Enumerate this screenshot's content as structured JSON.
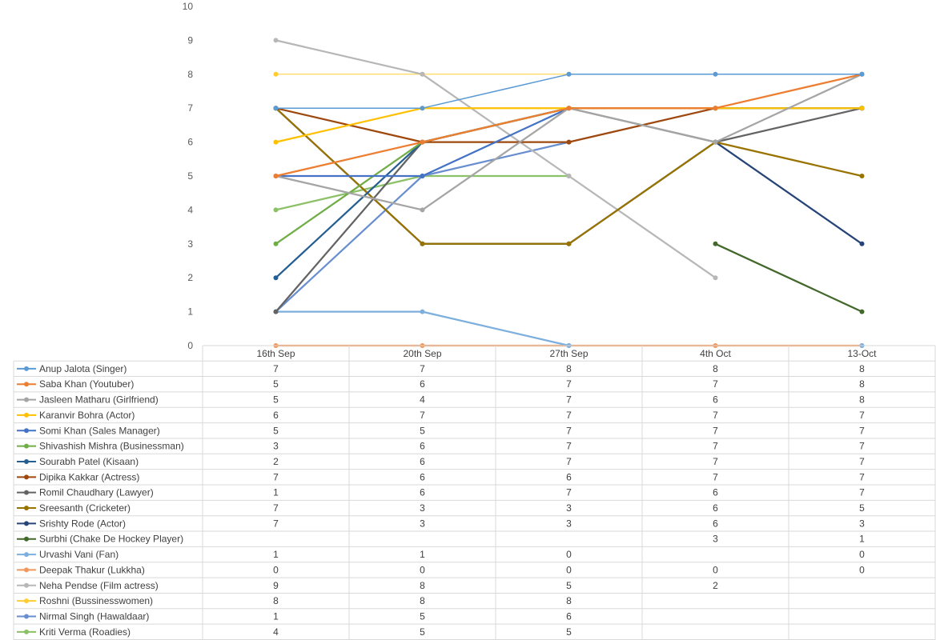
{
  "chart_data": {
    "type": "line",
    "title": "",
    "xlabel": "",
    "ylabel": "",
    "categories": [
      "16th Sep",
      "20th Sep",
      "27th Sep",
      "4th Oct",
      "13-Oct"
    ],
    "ylim": [
      0,
      10
    ],
    "yticks": [
      "0",
      "1",
      "2",
      "3",
      "4",
      "5",
      "6",
      "7",
      "8",
      "9",
      "10"
    ],
    "grid": false,
    "legend": "data-table-left",
    "series": [
      {
        "name": "Anup Jalota (Singer)",
        "color": "#5b9bd5",
        "values": [
          7,
          7,
          8,
          8,
          8
        ]
      },
      {
        "name": "Saba Khan (Youtuber)",
        "color": "#ed7d31",
        "values": [
          5,
          6,
          7,
          7,
          8
        ]
      },
      {
        "name": "Jasleen Matharu (Girlfriend)",
        "color": "#a5a5a5",
        "values": [
          5,
          4,
          7,
          6,
          8
        ]
      },
      {
        "name": "Karanvir Bohra (Actor)",
        "color": "#ffc000",
        "values": [
          6,
          7,
          7,
          7,
          7
        ]
      },
      {
        "name": "Somi Khan (Sales Manager)",
        "color": "#4472c4",
        "values": [
          5,
          5,
          7,
          7,
          7
        ]
      },
      {
        "name": "Shivashish Mishra (Businessman)",
        "color": "#70ad47",
        "values": [
          3,
          6,
          7,
          7,
          7
        ]
      },
      {
        "name": "Sourabh Patel (Kisaan)",
        "color": "#255e91",
        "values": [
          2,
          6,
          7,
          7,
          7
        ]
      },
      {
        "name": "Dipika Kakkar (Actress)",
        "color": "#9e480e",
        "values": [
          7,
          6,
          6,
          7,
          7
        ]
      },
      {
        "name": "Romil Chaudhary (Lawyer)",
        "color": "#636363",
        "values": [
          1,
          6,
          7,
          6,
          7
        ]
      },
      {
        "name": "Sreesanth (Cricketer)",
        "color": "#997300",
        "values": [
          7,
          3,
          3,
          6,
          5
        ]
      },
      {
        "name": "Srishty Rode (Actor)",
        "color": "#264478",
        "values": [
          7,
          3,
          3,
          6,
          3
        ]
      },
      {
        "name": "Surbhi (Chake De Hockey Player)",
        "color": "#43682b",
        "values": [
          null,
          null,
          null,
          3,
          1
        ]
      },
      {
        "name": "Urvashi Vani (Fan)",
        "color": "#7cafdd",
        "values": [
          1,
          1,
          0,
          null,
          0
        ]
      },
      {
        "name": "Deepak Thakur (Lukkha)",
        "color": "#f1975a",
        "values": [
          0,
          0,
          0,
          0,
          0
        ]
      },
      {
        "name": "Neha Pendse (Film actress)",
        "color": "#b7b7b7",
        "values": [
          9,
          8,
          5,
          2,
          null
        ]
      },
      {
        "name": "Roshni (Bussinesswomen)",
        "color": "#ffcd33",
        "values": [
          8,
          8,
          8,
          null,
          null
        ]
      },
      {
        "name": "Nirmal Singh (Hawaldaar)",
        "color": "#698ed0",
        "values": [
          1,
          5,
          6,
          null,
          null
        ]
      },
      {
        "name": "Kriti Verma (Roadies)",
        "color": "#8cc168",
        "values": [
          4,
          5,
          5,
          null,
          null
        ]
      }
    ]
  }
}
